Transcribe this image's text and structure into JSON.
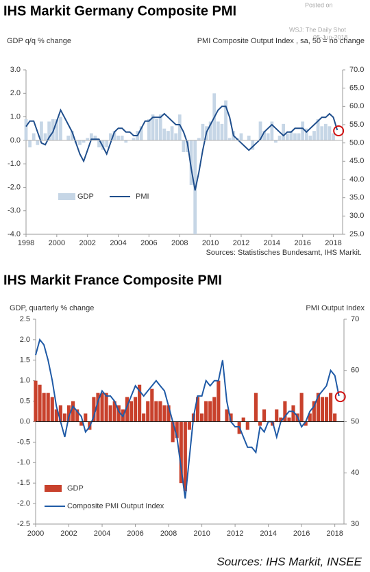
{
  "watermark": {
    "line1": "Posted on",
    "line2": "WSJ: The Daily Shot",
    "line3": "05-Jun-2018"
  },
  "chart_data": [
    {
      "type": "combo",
      "title": "IHS Markit Germany Composite PMI",
      "y_label": "GDP q/q % change",
      "y2_label": "PMI Composite  Output  Index , sa, 50 = no change",
      "source": "Sources: Statistisches Bundesamt, IHS Markit.",
      "x": [
        1998,
        1998.25,
        1998.5,
        1998.75,
        1999,
        1999.25,
        1999.5,
        1999.75,
        2000,
        2000.25,
        2000.5,
        2000.75,
        2001,
        2001.25,
        2001.5,
        2001.75,
        2002,
        2002.25,
        2002.5,
        2002.75,
        2003,
        2003.25,
        2003.5,
        2003.75,
        2004,
        2004.25,
        2004.5,
        2004.75,
        2005,
        2005.25,
        2005.5,
        2005.75,
        2006,
        2006.25,
        2006.5,
        2006.75,
        2007,
        2007.25,
        2007.5,
        2007.75,
        2008,
        2008.25,
        2008.5,
        2008.75,
        2009,
        2009.25,
        2009.5,
        2009.75,
        2010,
        2010.25,
        2010.5,
        2010.75,
        2011,
        2011.25,
        2011.5,
        2011.75,
        2012,
        2012.25,
        2012.5,
        2012.75,
        2013,
        2013.25,
        2013.5,
        2013.75,
        2014,
        2014.25,
        2014.5,
        2014.75,
        2015,
        2015.25,
        2015.5,
        2015.75,
        2016,
        2016.25,
        2016.5,
        2016.75,
        2017,
        2017.25,
        2017.5,
        2017.75,
        2018,
        2018.25
      ],
      "xlim": [
        1998,
        2018.6
      ],
      "xticks": [
        1998,
        2000,
        2002,
        2004,
        2006,
        2008,
        2010,
        2012,
        2014,
        2016,
        2018
      ],
      "ylim": [
        -4,
        3
      ],
      "yticks": [
        {
          "value": -4,
          "label": "-4.0"
        },
        {
          "value": -3,
          "label": "-3.0"
        },
        {
          "value": -2,
          "label": "-2.0"
        },
        {
          "value": -1,
          "label": "-1.0"
        },
        {
          "value": 0,
          "label": "0.0"
        },
        {
          "value": 1,
          "label": "1.0"
        },
        {
          "value": 2,
          "label": "2.0"
        },
        {
          "value": 3,
          "label": "3.0"
        }
      ],
      "y2lim": [
        25,
        70
      ],
      "y2ticks": [
        {
          "value": 25,
          "label": "25.0"
        },
        {
          "value": 30,
          "label": "30.0"
        },
        {
          "value": 35,
          "label": "35.0"
        },
        {
          "value": 40,
          "label": "40.0"
        },
        {
          "value": 45,
          "label": "45.0"
        },
        {
          "value": 50,
          "label": "50.0"
        },
        {
          "value": 55,
          "label": "55.0"
        },
        {
          "value": 60,
          "label": "60.0"
        },
        {
          "value": 65,
          "label": "65.0"
        },
        {
          "value": 70,
          "label": "70.0"
        }
      ],
      "series": [
        {
          "name": "GDP",
          "type": "bar",
          "color": "#c6d6e6",
          "values": [
            0.9,
            -0.3,
            0.3,
            -0.2,
            0.8,
            0.3,
            0.8,
            0.9,
            0.9,
            1.0,
            0.0,
            0.2,
            0.4,
            -0.1,
            -0.2,
            -0.1,
            0.1,
            0.3,
            0.2,
            -0.3,
            -0.4,
            -0.3,
            0.3,
            0.4,
            0.2,
            0.2,
            -0.1,
            0.0,
            0.1,
            0.4,
            0.6,
            0.0,
            0.9,
            1.1,
            0.9,
            1.1,
            0.5,
            0.4,
            0.6,
            0.3,
            1.1,
            -0.5,
            -0.5,
            -1.9,
            -4.0,
            0.1,
            0.7,
            0.6,
            0.8,
            2.0,
            0.8,
            0.7,
            1.7,
            0.1,
            0.4,
            0.1,
            0.3,
            0.0,
            0.2,
            -0.4,
            0.0,
            0.8,
            0.4,
            0.3,
            0.8,
            -0.1,
            0.2,
            0.7,
            0.3,
            0.4,
            0.3,
            0.3,
            0.8,
            0.5,
            0.2,
            0.4,
            0.9,
            0.6,
            0.7,
            0.6,
            0.3,
            null
          ]
        },
        {
          "name": "PMI",
          "type": "line",
          "axis": "y2",
          "color": "#1f4e8c",
          "values": [
            54.5,
            56,
            56,
            53,
            50,
            49.5,
            51.5,
            53,
            56,
            59,
            57,
            55,
            53,
            50,
            47,
            45,
            48,
            51,
            51,
            51,
            49,
            47,
            50,
            53,
            54,
            54,
            53,
            53,
            52,
            52,
            54,
            56,
            56,
            57,
            57,
            57,
            58,
            57,
            56,
            55,
            55,
            53,
            50,
            43,
            37,
            42,
            48,
            53,
            55,
            57,
            59,
            60,
            60,
            57,
            52,
            51,
            50,
            49,
            48,
            49,
            50,
            51,
            53,
            54,
            55,
            54,
            53,
            52,
            53,
            53,
            54,
            54,
            54,
            53,
            54,
            55,
            56,
            57,
            57,
            58,
            57,
            53.5
          ]
        }
      ]
    },
    {
      "type": "combo",
      "title": "IHS Markit France Composite PMI",
      "y_label": "GDP, quarterly % change",
      "y2_label": "PMI Output  Index",
      "source": "Sources: IHS Markit, INSEE",
      "x": [
        2000,
        2000.25,
        2000.5,
        2000.75,
        2001,
        2001.25,
        2001.5,
        2001.75,
        2002,
        2002.25,
        2002.5,
        2002.75,
        2003,
        2003.25,
        2003.5,
        2003.75,
        2004,
        2004.25,
        2004.5,
        2004.75,
        2005,
        2005.25,
        2005.5,
        2005.75,
        2006,
        2006.25,
        2006.5,
        2006.75,
        2007,
        2007.25,
        2007.5,
        2007.75,
        2008,
        2008.25,
        2008.5,
        2008.75,
        2009,
        2009.25,
        2009.5,
        2009.75,
        2010,
        2010.25,
        2010.5,
        2010.75,
        2011,
        2011.25,
        2011.5,
        2011.75,
        2012,
        2012.25,
        2012.5,
        2012.75,
        2013,
        2013.25,
        2013.5,
        2013.75,
        2014,
        2014.25,
        2014.5,
        2014.75,
        2015,
        2015.25,
        2015.5,
        2015.75,
        2016,
        2016.25,
        2016.5,
        2016.75,
        2017,
        2017.25,
        2017.5,
        2017.75,
        2018,
        2018.25
      ],
      "xlim": [
        2000,
        2018.55
      ],
      "xticks": [
        2000,
        2002,
        2004,
        2006,
        2008,
        2010,
        2012,
        2014,
        2016,
        2018
      ],
      "ylim": [
        -2.5,
        2.5
      ],
      "yticks": [
        -2.5,
        {
          "value": -2,
          "label": "-2.0"
        },
        -1.5,
        {
          "value": -1,
          "label": "-1.0"
        },
        -0.5,
        {
          "value": 0,
          "label": "0.0"
        },
        0.5,
        {
          "value": 1,
          "label": "1.0"
        },
        1.5,
        {
          "value": 2,
          "label": "2.0"
        },
        2.5
      ],
      "y2lim": [
        30,
        70
      ],
      "y2ticks": [
        30,
        40,
        50,
        60,
        70
      ],
      "series": [
        {
          "name": "GDP",
          "type": "bar",
          "color": "#c8412c",
          "values": [
            1.0,
            0.9,
            0.7,
            0.7,
            0.6,
            0.3,
            0.4,
            0.2,
            0.4,
            0.5,
            0.3,
            -0.1,
            0.2,
            -0.2,
            0.6,
            0.7,
            0.7,
            0.7,
            0.4,
            0.5,
            0.4,
            0.3,
            0.6,
            0.5,
            0.6,
            0.9,
            0.2,
            0.5,
            0.8,
            0.5,
            0.5,
            0.4,
            0.4,
            -0.5,
            -0.4,
            -1.5,
            -1.7,
            -0.2,
            0.2,
            0.6,
            0.2,
            0.5,
            0.5,
            0.6,
            1.0,
            0.0,
            0.3,
            0.2,
            0.0,
            -0.3,
            0.1,
            -0.2,
            0.0,
            0.7,
            -0.1,
            0.3,
            0.0,
            -0.1,
            0.3,
            0.1,
            0.5,
            0.1,
            0.4,
            0.2,
            0.7,
            -0.1,
            0.2,
            0.5,
            0.7,
            0.6,
            0.6,
            0.7,
            0.2,
            null
          ]
        },
        {
          "name": "Composite PMI Output Index",
          "type": "line",
          "axis": "y2",
          "color": "#1f5aa6",
          "values": [
            63,
            66,
            65,
            62,
            58,
            53,
            50,
            47,
            51,
            53,
            52,
            51,
            48,
            49,
            51,
            54,
            56,
            55,
            55,
            54,
            52,
            51,
            53,
            55,
            57,
            56,
            55,
            56,
            57,
            58,
            57,
            56,
            53,
            50,
            47,
            41,
            35,
            43,
            51,
            55,
            55,
            58,
            57,
            58,
            58,
            62,
            54,
            50,
            49,
            49,
            47,
            45,
            45,
            44,
            49,
            48,
            50,
            50,
            47,
            50,
            51,
            52,
            52,
            51,
            49,
            50,
            52,
            53,
            55,
            56,
            57,
            60,
            59,
            55
          ]
        }
      ]
    }
  ]
}
